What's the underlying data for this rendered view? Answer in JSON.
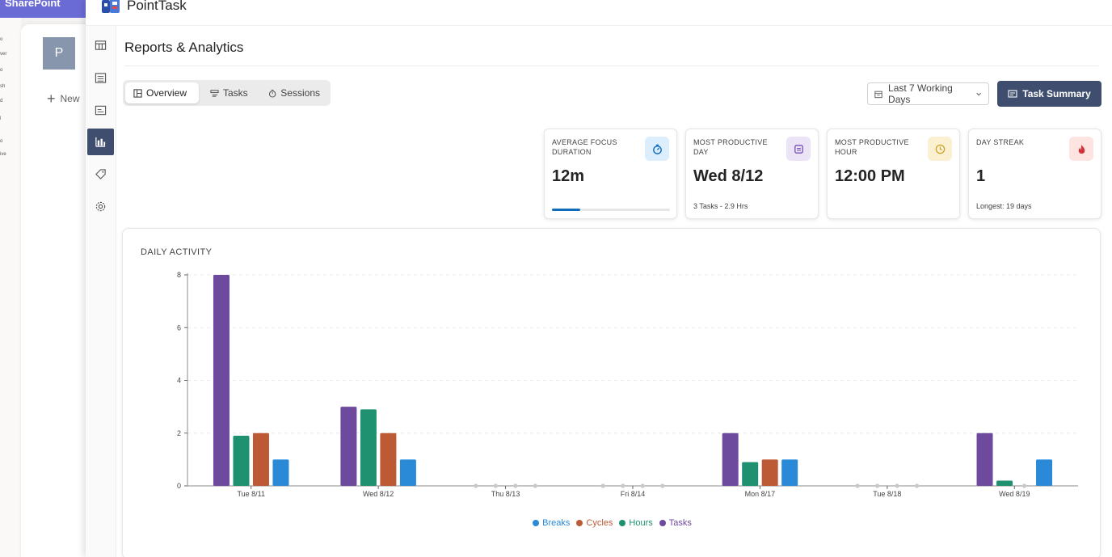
{
  "sharepoint": {
    "brand": "SharePoint",
    "avatar_letter": "P",
    "new_label": "New"
  },
  "app": {
    "title": "PointTask"
  },
  "page": {
    "title": "Reports & Analytics"
  },
  "tabs": [
    {
      "label": "Overview",
      "icon": "dashboard-icon",
      "active": true
    },
    {
      "label": "Tasks",
      "icon": "tasks-icon",
      "active": false
    },
    {
      "label": "Sessions",
      "icon": "timer-icon",
      "active": false
    }
  ],
  "range_select": {
    "value": "Last 7 Working Days",
    "icon": "calendar-icon"
  },
  "summary_button": {
    "label": "Task Summary",
    "icon": "summary-icon"
  },
  "stats": [
    {
      "label": "AVERAGE FOCUS DURATION",
      "value": "12m",
      "sub": "",
      "progress": 0.24,
      "icon": "stopwatch-icon",
      "icon_bg": "#dceefb",
      "icon_color": "#0f6cbd"
    },
    {
      "label": "MOST PRODUCTIVE DAY",
      "value": "Wed 8/12",
      "sub": "3 Tasks - 2.9 Hrs",
      "icon": "calendar-day-icon",
      "icon_bg": "#ebe4f6",
      "icon_color": "#7a4fb5"
    },
    {
      "label": "MOST PRODUCTIVE HOUR",
      "value": "12:00 PM",
      "sub": "",
      "icon": "clock-icon",
      "icon_bg": "#fbf1d2",
      "icon_color": "#c9a227"
    },
    {
      "label": "DAY STREAK",
      "value": "1",
      "sub": "Longest: 19 days",
      "icon": "flame-icon",
      "icon_bg": "#fde4e0",
      "icon_color": "#d13438"
    }
  ],
  "chart": {
    "title": "DAILY ACTIVITY"
  },
  "chart_data": {
    "type": "bar",
    "title": "DAILY ACTIVITY",
    "categories": [
      "Tue 8/11",
      "Wed 8/12",
      "Thu 8/13",
      "Fri 8/14",
      "Mon 8/17",
      "Tue 8/18",
      "Wed 8/19"
    ],
    "series": [
      {
        "name": "Tasks",
        "color": "#6e4a9e",
        "values": [
          8,
          3,
          0,
          0,
          2,
          0,
          2
        ]
      },
      {
        "name": "Hours",
        "color": "#1f9170",
        "values": [
          1.9,
          2.9,
          0,
          0,
          0.9,
          0,
          0.2
        ]
      },
      {
        "name": "Cycles",
        "color": "#bd5a36",
        "values": [
          2,
          2,
          0,
          0,
          1,
          0,
          0
        ]
      },
      {
        "name": "Breaks",
        "color": "#2a8ad8",
        "values": [
          1,
          1,
          0,
          0,
          1,
          0,
          1
        ]
      }
    ],
    "legend_order": [
      "Breaks",
      "Cycles",
      "Hours",
      "Tasks"
    ],
    "ylim": [
      0,
      8
    ],
    "yticks": [
      0,
      2,
      4,
      6,
      8
    ],
    "grid": true,
    "legend_position": "bottom-center"
  }
}
